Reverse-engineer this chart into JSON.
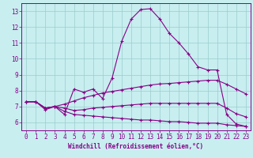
{
  "background_color": "#c8eef0",
  "line_color": "#880088",
  "grid_color": "#99cccc",
  "xlabel": "Windchill (Refroidissement éolien,°C)",
  "xlabel_fontsize": 5.5,
  "tick_fontsize": 5.5,
  "xlim": [
    -0.5,
    23.5
  ],
  "ylim": [
    5.5,
    13.5
  ],
  "yticks": [
    6,
    7,
    8,
    9,
    10,
    11,
    12,
    13
  ],
  "xticks": [
    0,
    1,
    2,
    3,
    4,
    5,
    6,
    7,
    8,
    9,
    10,
    11,
    12,
    13,
    14,
    15,
    16,
    17,
    18,
    19,
    20,
    21,
    22,
    23
  ],
  "series": [
    {
      "x": [
        0,
        1,
        2,
        3,
        4,
        5,
        6,
        7,
        8,
        9,
        10,
        11,
        12,
        13,
        14,
        15,
        16,
        17,
        18,
        19,
        20,
        21,
        22,
        23
      ],
      "y": [
        7.3,
        7.3,
        6.8,
        7.0,
        6.5,
        8.1,
        7.9,
        8.1,
        7.5,
        8.8,
        11.1,
        12.5,
        13.1,
        13.15,
        12.5,
        11.6,
        11.0,
        10.3,
        9.5,
        9.3,
        9.3,
        6.5,
        5.9,
        5.75
      ]
    },
    {
      "x": [
        0,
        1,
        2,
        3,
        4,
        5,
        6,
        7,
        8,
        9,
        10,
        11,
        12,
        13,
        14,
        15,
        16,
        17,
        18,
        19,
        20,
        21,
        22,
        23
      ],
      "y": [
        7.3,
        7.3,
        6.9,
        7.0,
        7.15,
        7.35,
        7.55,
        7.7,
        7.85,
        7.95,
        8.05,
        8.15,
        8.25,
        8.35,
        8.42,
        8.45,
        8.5,
        8.55,
        8.6,
        8.65,
        8.65,
        8.4,
        8.1,
        7.8
      ]
    },
    {
      "x": [
        0,
        1,
        2,
        3,
        4,
        5,
        6,
        7,
        8,
        9,
        10,
        11,
        12,
        13,
        14,
        15,
        16,
        17,
        18,
        19,
        20,
        21,
        22,
        23
      ],
      "y": [
        7.3,
        7.3,
        6.9,
        7.0,
        6.9,
        6.75,
        6.8,
        6.9,
        6.95,
        7.0,
        7.05,
        7.1,
        7.15,
        7.2,
        7.2,
        7.2,
        7.2,
        7.2,
        7.2,
        7.2,
        7.2,
        6.9,
        6.55,
        6.35
      ]
    },
    {
      "x": [
        0,
        1,
        2,
        3,
        4,
        5,
        6,
        7,
        8,
        9,
        10,
        11,
        12,
        13,
        14,
        15,
        16,
        17,
        18,
        19,
        20,
        21,
        22,
        23
      ],
      "y": [
        7.3,
        7.3,
        6.9,
        7.0,
        6.7,
        6.5,
        6.45,
        6.4,
        6.35,
        6.3,
        6.25,
        6.2,
        6.15,
        6.15,
        6.1,
        6.05,
        6.05,
        6.0,
        5.95,
        5.95,
        5.95,
        5.85,
        5.8,
        5.75
      ]
    }
  ]
}
